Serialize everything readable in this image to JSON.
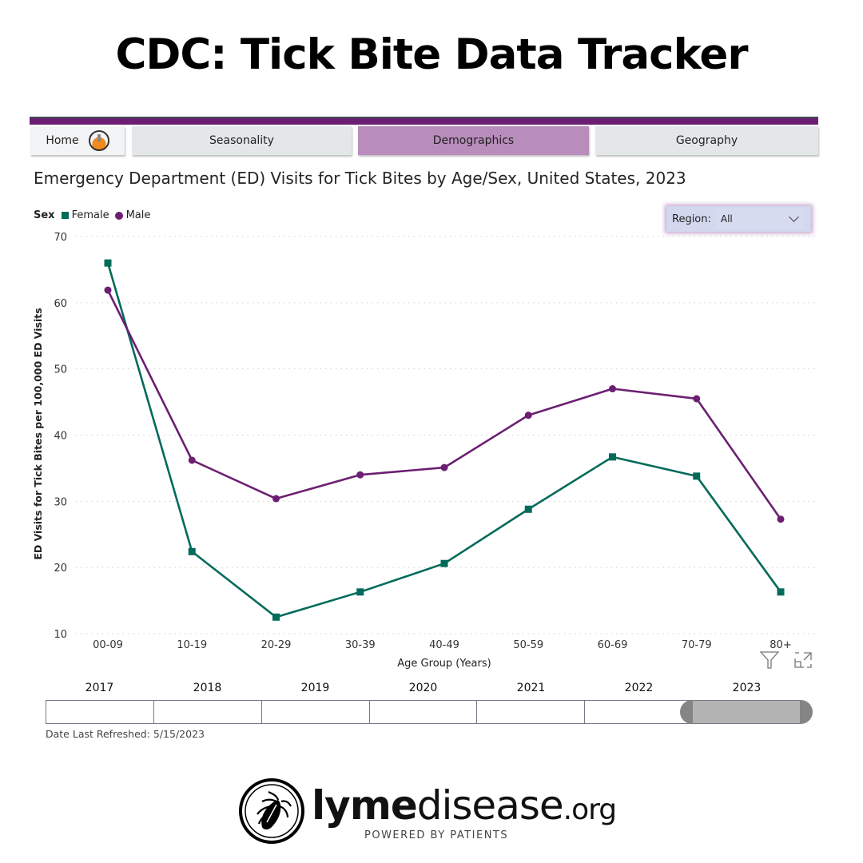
{
  "page_title": "CDC: Tick Bite Data Tracker",
  "nav": {
    "tabs": [
      {
        "label": "Home",
        "icon": "home-logo-icon"
      },
      {
        "label": "Seasonality"
      },
      {
        "label": "Demographics",
        "active": true
      },
      {
        "label": "Geography"
      }
    ]
  },
  "region_filter": {
    "label": "Region:",
    "value": "All"
  },
  "year_slider": {
    "years": [
      "2017",
      "2018",
      "2019",
      "2020",
      "2021",
      "2022",
      "2023"
    ],
    "selected": "2023"
  },
  "refreshed": "Date Last Refreshed: 5/15/2023",
  "logo": {
    "text_bold": "lyme",
    "text_light": "disease",
    "text_org": ".org",
    "tagline": "POWERED BY PATIENTS"
  },
  "colors": {
    "female": "#016b5a",
    "male": "#6c1f72",
    "accent": "#6c1f72",
    "active_tab": "#b88cbb"
  },
  "chart_data": {
    "type": "line",
    "title": "Emergency Department (ED) Visits for Tick Bites by Age/Sex, United States, 2023",
    "xlabel": "Age Group (Years)",
    "ylabel": "ED Visits for Tick Bites per 100,000 ED Visits",
    "legend_title": "Sex",
    "legend_position": "top-left",
    "categories": [
      "00-09",
      "10-19",
      "20-29",
      "30-39",
      "40-49",
      "50-59",
      "60-69",
      "70-79",
      "80+"
    ],
    "category_labels_shown": [
      "00-09",
      "10-19",
      "20-29",
      "30-39",
      "40-49",
      "50-59",
      "60-69",
      "70-79",
      "80+"
    ],
    "ylim": [
      10,
      70
    ],
    "yticks": [
      "10",
      "20",
      "30",
      "40",
      "50",
      "60",
      "70"
    ],
    "grid": true,
    "series": [
      {
        "name": "Female",
        "marker": "square",
        "values": [
          66.0,
          22.4,
          12.5,
          16.3,
          20.6,
          28.8,
          36.7,
          33.8,
          16.3
        ]
      },
      {
        "name": "Male",
        "marker": "circle",
        "values": [
          61.9,
          36.2,
          30.4,
          34.0,
          35.1,
          43.0,
          47.0,
          45.5,
          27.3
        ]
      }
    ]
  }
}
